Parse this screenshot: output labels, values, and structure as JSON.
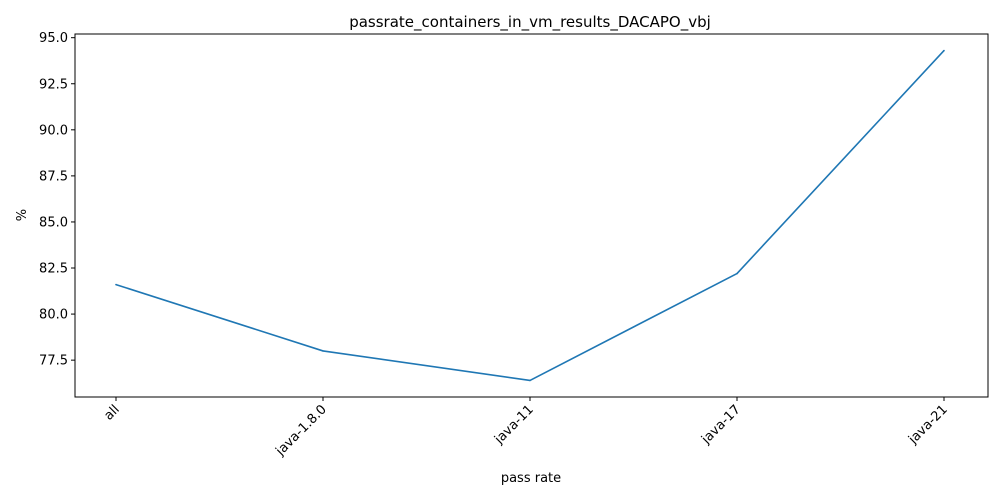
{
  "chart_data": {
    "type": "line",
    "title": "passrate_containers_in_vm_results_DACAPO_vbj",
    "xlabel": "pass rate",
    "ylabel": "%",
    "categories": [
      "all",
      "java-1.8.0",
      "java-11",
      "java-17",
      "java-21"
    ],
    "series": [
      {
        "values": [
          81.6,
          78.0,
          76.4,
          82.2,
          94.3
        ],
        "color": "#1f77b4"
      }
    ],
    "ylim": [
      75.5,
      95.2
    ],
    "yticks": [
      "77.5",
      "80.0",
      "82.5",
      "85.0",
      "87.5",
      "90.0",
      "92.5",
      "95.0"
    ],
    "grid": false,
    "legend": "none"
  }
}
